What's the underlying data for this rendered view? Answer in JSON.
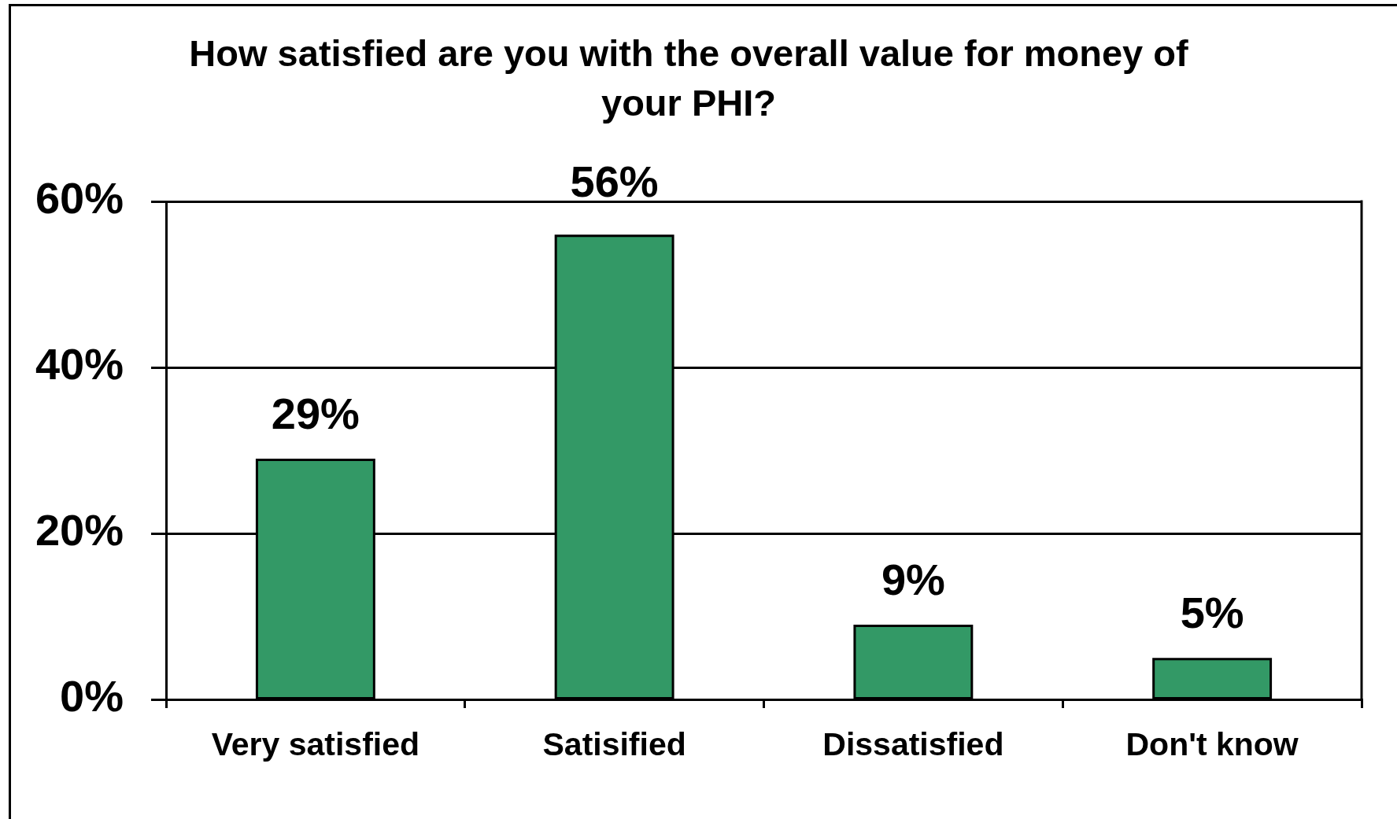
{
  "chart_data": {
    "type": "bar",
    "title": "How satisfied are you with the overall value for money of your PHI?",
    "categories": [
      "Very satisfied",
      "Satisified",
      "Dissatisfied",
      "Don't know"
    ],
    "values": [
      29,
      56,
      9,
      5
    ],
    "value_labels": [
      "29%",
      "56%",
      "9%",
      "5%"
    ],
    "color": "#339966",
    "ylim": [
      0,
      60
    ],
    "yticks": [
      {
        "value": 0,
        "label": "0%"
      },
      {
        "value": 20,
        "label": "20%"
      },
      {
        "value": 40,
        "label": "40%"
      },
      {
        "value": 60,
        "label": "60%"
      }
    ],
    "grid": "y"
  }
}
